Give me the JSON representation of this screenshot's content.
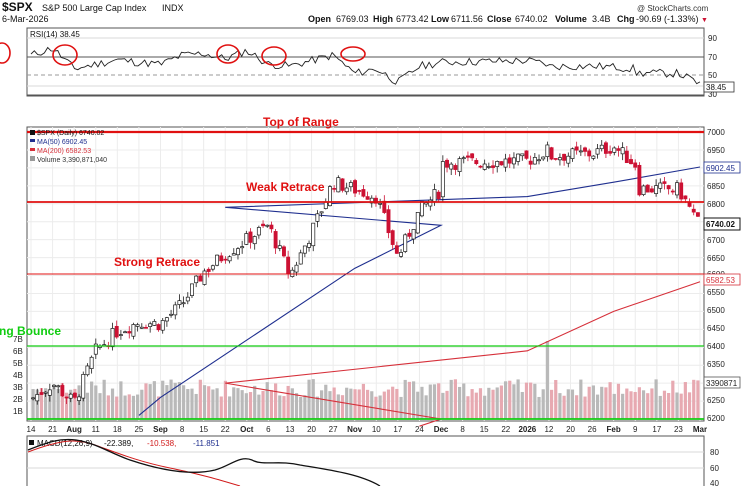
{
  "header": {
    "symbol": "$SPX",
    "name": "S&P 500 Large Cap Index",
    "exchange": "INDX",
    "date": "6-Mar-2026",
    "copyright": "@ StockCharts.com",
    "open_label": "Open",
    "open": "6769.03",
    "high_label": "High",
    "high": "6773.42",
    "low_label": "Low",
    "low": "6711.56",
    "close_label": "Close",
    "close": "6740.02",
    "volume_label": "Volume",
    "volume": "3.4B",
    "chg_label": "Chg",
    "chg": "-90.69 (-1.33%)",
    "chg_arrow": "▼"
  },
  "rsi": {
    "label": "RSI(14) 38.45",
    "last": "38.45",
    "axis": [
      "90",
      "70",
      "50",
      "30"
    ]
  },
  "price_legend": {
    "main": "$SPX (Daily) 6740.02",
    "ma50": "MA(50) 6902.45",
    "ma200": "MA(200) 6582.53",
    "volume": "Volume 3,390,871,040"
  },
  "annotations": {
    "top_of_range": "Top of Range",
    "weak_retrace": "Weak Retrace",
    "strong_retrace": "Strong Retrace",
    "bounce": "ng Bounce"
  },
  "price_axis": [
    "7000",
    "6950",
    "6900",
    "6850",
    "6800",
    "6750",
    "6700",
    "6650",
    "6600",
    "6550",
    "6500",
    "6450",
    "6400",
    "6350",
    "6300",
    "6250",
    "6200"
  ],
  "volume_axis": [
    "7B",
    "6B",
    "5B",
    "4B",
    "3B",
    "2B",
    "1B"
  ],
  "price_tags": {
    "ma50": "6902.45",
    "close": "6740.02",
    "ma200": "6582.53",
    "volume": "3390871"
  },
  "x_axis": [
    "14",
    "21",
    "Aug",
    "11",
    "18",
    "25",
    "Sep",
    "8",
    "15",
    "22",
    "Oct",
    "6",
    "13",
    "20",
    "27",
    "Nov",
    "10",
    "17",
    "24",
    "Dec",
    "8",
    "15",
    "22",
    "2026",
    "12",
    "20",
    "26",
    "Feb",
    "9",
    "17",
    "23",
    "Mar"
  ],
  "macd": {
    "label": "MACD(12,26,9)",
    "v1": "-22.389,",
    "v2": "-10.538,",
    "v3": "-11.851",
    "axis": [
      "80",
      "60",
      "40"
    ]
  },
  "colors": {
    "up": "#1a1a1a",
    "down": "#cc1133",
    "ma50": "#1f2f8f",
    "ma200": "#d6303a",
    "level_line": "#e01010",
    "bounce_line": "#11cc11",
    "volume_up": "#b9b9b9",
    "volume_down": "#e7a9b1",
    "macd_line": "#111111",
    "macd_signal": "#d11a1a"
  },
  "chart_data": {
    "type": "candlestick",
    "title": "$SPX S&P 500 Large Cap Index",
    "ylim": [
      6200,
      7000
    ],
    "horizontal_levels": [
      {
        "label": "Top of Range",
        "value": 7000
      },
      {
        "label": "Weak Retrace",
        "value": 6800
      },
      {
        "label": "Strong Retrace",
        "value": 6595
      },
      {
        "label": "ng Bounce",
        "value": 6400
      }
    ],
    "close_path": [
      [
        "14",
        6255
      ],
      [
        "21",
        6300
      ],
      [
        "Aug",
        6245
      ],
      [
        "11",
        6390
      ],
      [
        "18",
        6445
      ],
      [
        "25",
        6470
      ],
      [
        "Sep",
        6465
      ],
      [
        "8",
        6520
      ],
      [
        "15",
        6610
      ],
      [
        "22",
        6660
      ],
      [
        "Oct",
        6700
      ],
      [
        "6",
        6740
      ],
      [
        "13",
        6600
      ],
      [
        "20",
        6720
      ],
      [
        "27",
        6860
      ],
      [
        "Nov",
        6840
      ],
      [
        "10",
        6820
      ],
      [
        "17",
        6650
      ],
      [
        "24",
        6780
      ],
      [
        "Dec",
        6840
      ],
      [
        "8",
        6860
      ],
      [
        "15",
        6800
      ],
      [
        "22",
        6900
      ],
      [
        "2026",
        6920
      ],
      [
        "12",
        6950
      ],
      [
        "20",
        6890
      ],
      [
        "26",
        6940
      ],
      [
        "Feb",
        6960
      ],
      [
        "9",
        6910
      ],
      [
        "17",
        6860
      ],
      [
        "23",
        6840
      ],
      [
        "Mar",
        6740
      ]
    ],
    "ma50_path": [
      [
        "25",
        6210
      ],
      [
        "Sep",
        6260
      ],
      [
        "Oct",
        6420
      ],
      [
        "Nov",
        6620
      ],
      [
        "Dec",
        6740
      ],
      [
        "22",
        6790
      ],
      [
        "2026",
        6820
      ],
      [
        "Feb",
        6860
      ],
      [
        "Mar",
        6902.45
      ]
    ],
    "ma200_path": [
      [
        "24",
        6180
      ],
      [
        "Dec",
        6200
      ],
      [
        "22",
        6300
      ],
      [
        "2026",
        6390
      ],
      [
        "Feb",
        6500
      ],
      [
        "Mar",
        6582.53
      ]
    ],
    "rsi_path": [
      [
        "14",
        70
      ],
      [
        "21",
        78
      ],
      [
        "Aug",
        55
      ],
      [
        "11",
        60
      ],
      [
        "18",
        65
      ],
      [
        "25",
        62
      ],
      [
        "Sep",
        60
      ],
      [
        "8",
        70
      ],
      [
        "15",
        72
      ],
      [
        "22",
        66
      ],
      [
        "Oct",
        75
      ],
      [
        "6",
        60
      ],
      [
        "13",
        58
      ],
      [
        "20",
        64
      ],
      [
        "27",
        70
      ],
      [
        "Nov",
        50
      ],
      [
        "10",
        55
      ],
      [
        "17",
        40
      ],
      [
        "24",
        58
      ],
      [
        "Dec",
        62
      ],
      [
        "8",
        60
      ],
      [
        "15",
        54
      ],
      [
        "22",
        58
      ],
      [
        "2026",
        64
      ],
      [
        "12",
        60
      ],
      [
        "20",
        55
      ],
      [
        "26",
        58
      ],
      [
        "Feb",
        57
      ],
      [
        "9",
        55
      ],
      [
        "17",
        52
      ],
      [
        "23",
        50
      ],
      [
        "Mar",
        38.45
      ]
    ]
  }
}
